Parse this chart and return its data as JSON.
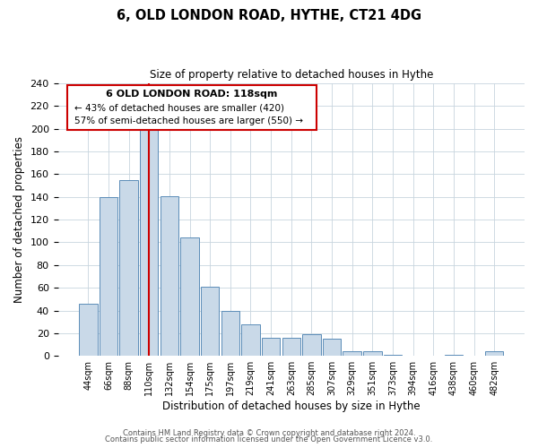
{
  "title": "6, OLD LONDON ROAD, HYTHE, CT21 4DG",
  "subtitle": "Size of property relative to detached houses in Hythe",
  "xlabel": "Distribution of detached houses by size in Hythe",
  "ylabel": "Number of detached properties",
  "bar_labels": [
    "44sqm",
    "66sqm",
    "88sqm",
    "110sqm",
    "132sqm",
    "154sqm",
    "175sqm",
    "197sqm",
    "219sqm",
    "241sqm",
    "263sqm",
    "285sqm",
    "307sqm",
    "329sqm",
    "351sqm",
    "373sqm",
    "394sqm",
    "416sqm",
    "438sqm",
    "460sqm",
    "482sqm"
  ],
  "bar_values": [
    46,
    140,
    155,
    200,
    141,
    104,
    61,
    40,
    28,
    16,
    16,
    19,
    15,
    4,
    4,
    1,
    0,
    0,
    1,
    0,
    4
  ],
  "bar_color": "#c9d9e8",
  "bar_edge_color": "#5b8db8",
  "red_line_bar_index": 3,
  "ylim": [
    0,
    240
  ],
  "yticks": [
    0,
    20,
    40,
    60,
    80,
    100,
    120,
    140,
    160,
    180,
    200,
    220,
    240
  ],
  "annotation_title": "6 OLD LONDON ROAD: 118sqm",
  "annotation_line1": "← 43% of detached houses are smaller (420)",
  "annotation_line2": "57% of semi-detached houses are larger (550) →",
  "annotation_box_color": "#ffffff",
  "annotation_box_edge": "#cc0000",
  "footer_line1": "Contains HM Land Registry data © Crown copyright and database right 2024.",
  "footer_line2": "Contains public sector information licensed under the Open Government Licence v3.0.",
  "background_color": "#ffffff",
  "grid_color": "#c8d4de"
}
